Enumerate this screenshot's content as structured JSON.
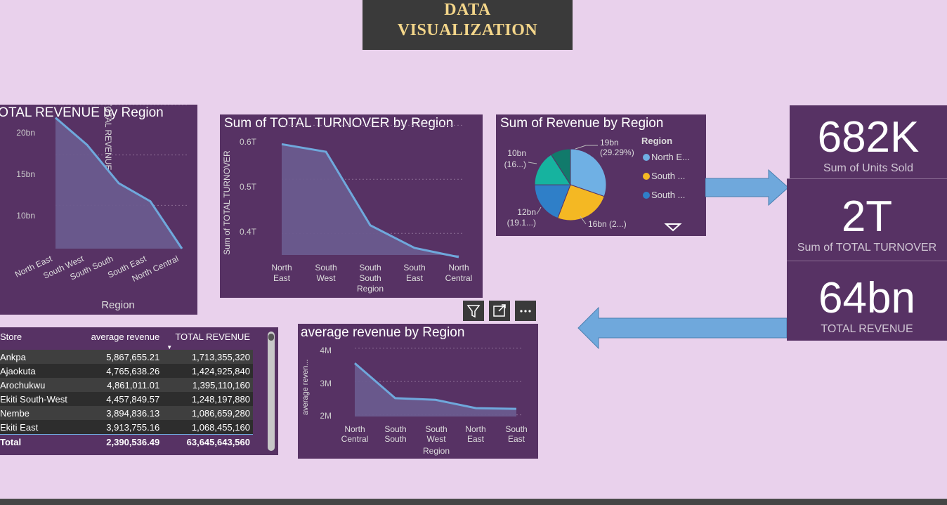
{
  "header": {
    "line1": "DATA",
    "line2": "VISUALIZATION"
  },
  "colors": {
    "panel": "#573264",
    "line": "#6fa8dc",
    "area": "#6a5b8e",
    "page": "#e9d1ec",
    "arrow": "#6fa8dc"
  },
  "panel1": {
    "title": "TOTAL REVENUE by Region",
    "ylabel": "TOTAL REVENUE",
    "xlabel": "Region",
    "yticks": [
      "20bn",
      "15bn",
      "10bn"
    ]
  },
  "panel2": {
    "title": "Sum of TOTAL TURNOVER by Region",
    "ylabel": "Sum of TOTAL TURNOVER",
    "xlabel": "Region",
    "yticks": [
      "0.6T",
      "0.5T",
      "0.4T"
    ],
    "categories": [
      [
        "North",
        "East"
      ],
      [
        "South",
        "West"
      ],
      [
        "South",
        "South"
      ],
      [
        "South",
        "East"
      ],
      [
        "North",
        "Central"
      ]
    ]
  },
  "panel3": {
    "title": "Sum of Revenue by Region",
    "legend_title": "Region",
    "legend": [
      "North E...",
      "South ...",
      "South ..."
    ],
    "labels": {
      "a1": "19bn",
      "a2": "(29.29%)",
      "b1": "10bn",
      "b2": "(16...)",
      "c1": "12bn",
      "c2": "(19.1...)",
      "d": "16bn (2...)"
    }
  },
  "panel4": {
    "title": "average revenue by Region",
    "ylabel": "average reven...",
    "xlabel": "Region",
    "yticks": [
      "4M",
      "3M",
      "2M"
    ],
    "categories": [
      [
        "North",
        "Central"
      ],
      [
        "South",
        "South"
      ],
      [
        "South",
        "West"
      ],
      [
        "North",
        "East"
      ],
      [
        "South",
        "East"
      ]
    ]
  },
  "kpis": [
    {
      "value": "682K",
      "label": "Sum of Units Sold"
    },
    {
      "value": "2T",
      "label": "Sum of TOTAL TURNOVER"
    },
    {
      "value": "64bn",
      "label": "TOTAL REVENUE"
    }
  ],
  "table": {
    "headers": [
      "Store",
      "average revenue",
      "TOTAL REVENUE"
    ],
    "rows": [
      [
        "Ankpa",
        "5,867,655.21",
        "1,713,355,320"
      ],
      [
        "Ajaokuta",
        "4,765,638.26",
        "1,424,925,840"
      ],
      [
        "Arochukwu",
        "4,861,011.01",
        "1,395,110,160"
      ],
      [
        "Ekiti South-West",
        "4,457,849.57",
        "1,248,197,880"
      ],
      [
        "Nembe",
        "3,894,836.13",
        "1,086,659,280"
      ],
      [
        "Ekiti East",
        "3,913,755.16",
        "1,068,455,160"
      ]
    ],
    "total": [
      "Total",
      "2,390,536.49",
      "63,645,643,560"
    ]
  },
  "chart_data": [
    {
      "type": "area",
      "title": "TOTAL REVENUE by Region",
      "xlabel": "Region",
      "ylabel": "TOTAL REVENUE",
      "categories": [
        "North East",
        "South West",
        "South South",
        "South East",
        "North Central"
      ],
      "values": [
        18.7,
        16.0,
        12.2,
        10.4,
        5.7
      ],
      "ylim": [
        5.7,
        20
      ]
    },
    {
      "type": "area",
      "title": "Sum of TOTAL TURNOVER by Region",
      "xlabel": "Region",
      "ylabel": "Sum of TOTAL TURNOVER",
      "categories": [
        "North East",
        "South West",
        "South South",
        "South East",
        "North Central"
      ],
      "values": [
        0.565,
        0.551,
        0.415,
        0.373,
        0.356
      ],
      "ylim": [
        0.36,
        0.62
      ]
    },
    {
      "type": "pie",
      "title": "Sum of Revenue by Region",
      "legend_title": "Region",
      "slices": [
        {
          "label": "North E...",
          "value": 19,
          "percent": 29.29,
          "color": "#6fb0e4"
        },
        {
          "label": "South ...",
          "value": 16,
          "color": "#f4b823"
        },
        {
          "label": "South ...",
          "value": 12,
          "percent": 19.1,
          "color": "#2f7fc8"
        },
        {
          "label": "",
          "value": 10,
          "color": "#16b39f"
        },
        {
          "label": "",
          "value": 5.7,
          "color": "#117a6b"
        }
      ]
    },
    {
      "type": "area",
      "title": "average revenue by Region",
      "xlabel": "Region",
      "ylabel": "average reven...",
      "categories": [
        "North Central",
        "South South",
        "South West",
        "North East",
        "South East"
      ],
      "values": [
        3.55,
        2.5,
        2.45,
        2.2,
        2.18
      ],
      "ylim": [
        1.95,
        4.1
      ]
    }
  ]
}
